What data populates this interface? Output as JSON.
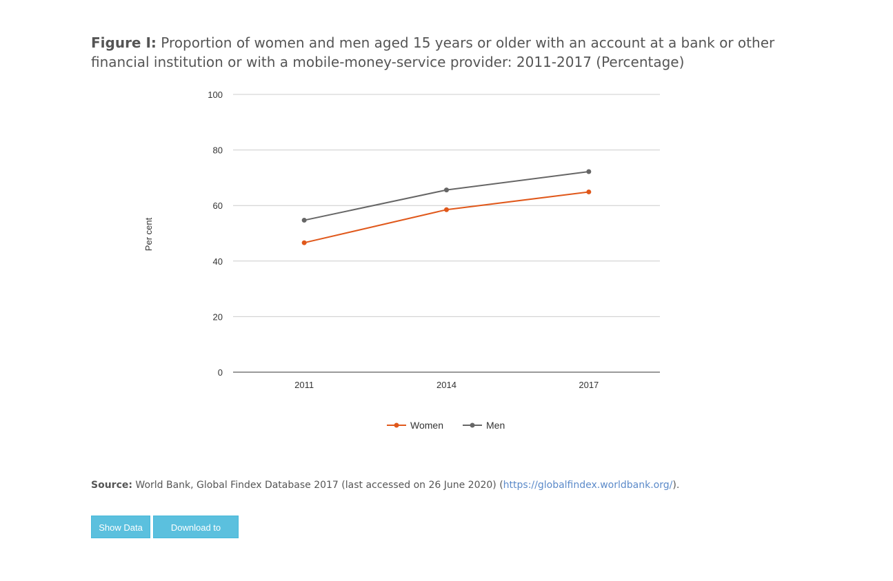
{
  "figure": {
    "label": "Figure I:",
    "title": "Proportion of women and men aged 15 years or older with an account at a bank or other financial institution or with a mobile-money-service provider: 2011-2017 (Percentage)"
  },
  "chart_data": {
    "type": "line",
    "ylabel": "Per cent",
    "xlabel": "",
    "categories": [
      "2011",
      "2014",
      "2017"
    ],
    "ylim": [
      0,
      100
    ],
    "yticks": [
      "0",
      "20",
      "40",
      "60",
      "80",
      "100"
    ],
    "grid": true,
    "legend_position": "bottom-center",
    "series": [
      {
        "name": "Women",
        "values": [
          46.6,
          58.5,
          64.9
        ],
        "color": "#e0581b"
      },
      {
        "name": "Men",
        "values": [
          54.7,
          65.6,
          72.2
        ],
        "color": "#666666"
      }
    ]
  },
  "source": {
    "label": "Source:",
    "text": "World Bank, Global Findex Database 2017 (last accessed on 26 June 2020) (",
    "link": "https://globalfindex.worldbank.org/",
    "suffix": ")."
  },
  "buttons": {
    "show_data": "Show Data",
    "download_csv": "Download to CSV"
  },
  "colors": {
    "button": "#5bc0de",
    "link": "#5b8ac9"
  }
}
